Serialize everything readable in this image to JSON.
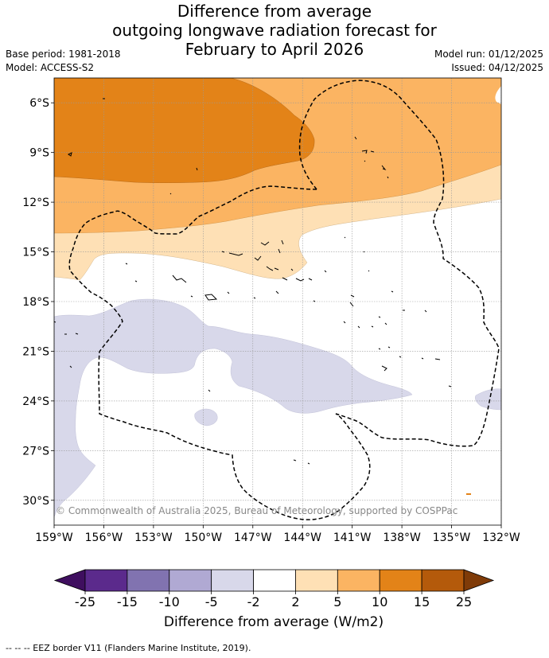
{
  "title": {
    "line1": "Difference from average",
    "line2": "outgoing longwave radiation forecast for",
    "line3": "February to April 2026"
  },
  "meta": {
    "base_period": "Base period: 1981-2018",
    "model": "Model: ACCESS-S2",
    "model_run": "Model run: 01/12/2025",
    "issued": "Issued: 04/12/2025"
  },
  "copyright": "© Commonwealth of Australia 2025, Bureau of Meteorology, supported by COSPPac",
  "map": {
    "lon_range": [
      -159,
      -132
    ],
    "lat_range": [
      -31.5,
      -4.5
    ],
    "lon_ticks": [
      {
        "value": -159,
        "label": "159°W"
      },
      {
        "value": -156,
        "label": "156°W"
      },
      {
        "value": -153,
        "label": "153°W"
      },
      {
        "value": -150,
        "label": "150°W"
      },
      {
        "value": -147,
        "label": "147°W"
      },
      {
        "value": -144,
        "label": "144°W"
      },
      {
        "value": -141,
        "label": "141°W"
      },
      {
        "value": -138,
        "label": "138°W"
      },
      {
        "value": -135,
        "label": "135°W"
      },
      {
        "value": -132,
        "label": "132°W"
      }
    ],
    "lat_ticks": [
      {
        "value": -6,
        "label": "6°S"
      },
      {
        "value": -9,
        "label": "9°S"
      },
      {
        "value": -12,
        "label": "12°S"
      },
      {
        "value": -15,
        "label": "15°S"
      },
      {
        "value": -18,
        "label": "18°S"
      },
      {
        "value": -21,
        "label": "21°S"
      },
      {
        "value": -24,
        "label": "24°S"
      },
      {
        "value": -27,
        "label": "27°S"
      },
      {
        "value": -30,
        "label": "30°S"
      }
    ]
  },
  "legend": {
    "title": "Difference from average (W/m2)",
    "tick_labels": [
      "-25",
      "-15",
      "-10",
      "-5",
      "-2",
      "2",
      "5",
      "10",
      "15",
      "25"
    ],
    "colors": [
      "#3f0f5f",
      "#5b2a8c",
      "#8173b0",
      "#b0a9d3",
      "#d8d8ea",
      "#ffffff",
      "#fee0b5",
      "#fbb462",
      "#e38318",
      "#b45a0b",
      "#7f3b08"
    ]
  },
  "colors": {
    "band_2_5": "#fee0b5",
    "band_5_10": "#fbb462",
    "band_10_15": "#e38318",
    "band_neg_2_5": "#d8d8ea"
  },
  "footnote": "--  --  -- EEZ border V11 (Flanders Marine Institute, 2019)."
}
